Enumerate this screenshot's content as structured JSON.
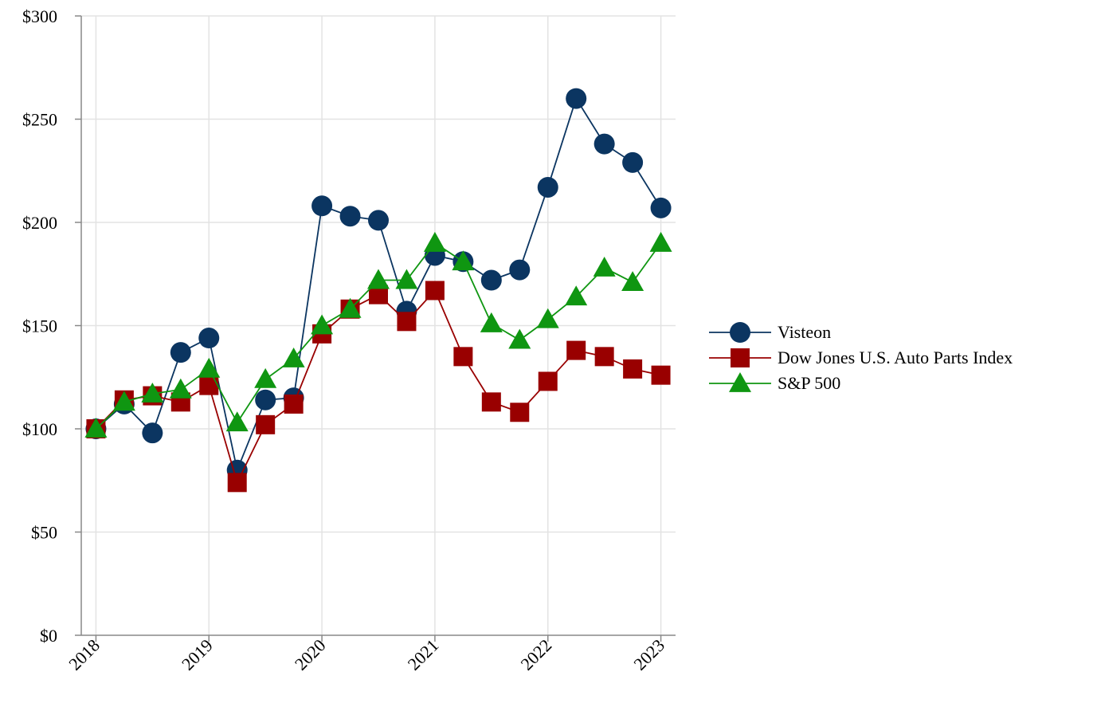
{
  "chart_data": {
    "type": "line",
    "title": "",
    "xlabel": "",
    "ylabel": "",
    "x": [
      2018.0,
      2018.25,
      2018.5,
      2018.75,
      2019.0,
      2019.25,
      2019.5,
      2019.75,
      2020.0,
      2020.25,
      2020.5,
      2020.75,
      2021.0,
      2021.25,
      2021.5,
      2021.75,
      2022.0,
      2022.25,
      2022.5,
      2022.75,
      2023.0
    ],
    "x_ticks": [
      "2018",
      "2019",
      "2020",
      "2021",
      "2022",
      "2023"
    ],
    "x_tick_values": [
      2018,
      2019,
      2020,
      2021,
      2022,
      2023
    ],
    "y_ticks": [
      "$0",
      "$50",
      "$100",
      "$150",
      "$200",
      "$250",
      "$300"
    ],
    "y_tick_values": [
      0,
      50,
      100,
      150,
      200,
      250,
      300
    ],
    "ylim": [
      0,
      300
    ],
    "xlim": [
      2017.87,
      2023.13
    ],
    "grid": true,
    "legend_position": "right",
    "series": [
      {
        "name": "Visteon",
        "marker": "circle",
        "color": "#0b3561",
        "values": [
          100,
          112,
          98,
          137,
          144,
          80,
          114,
          115,
          208,
          203,
          201,
          157,
          184,
          181,
          172,
          177,
          217,
          260,
          238,
          229,
          207
        ]
      },
      {
        "name": "Dow Jones U.S. Auto Parts Index",
        "marker": "square",
        "color": "#990000",
        "values": [
          100,
          114,
          116,
          113,
          121,
          74,
          102,
          112,
          146,
          158,
          165,
          152,
          167,
          135,
          113,
          108,
          123,
          138,
          135,
          129,
          126
        ]
      },
      {
        "name": "S&P 500",
        "marker": "triangle",
        "color": "#0f9611",
        "values": [
          100,
          113,
          117,
          119,
          129,
          103,
          124,
          134,
          150,
          158,
          172,
          172,
          190,
          181,
          151,
          143,
          153,
          164,
          178,
          171,
          190
        ]
      }
    ]
  }
}
